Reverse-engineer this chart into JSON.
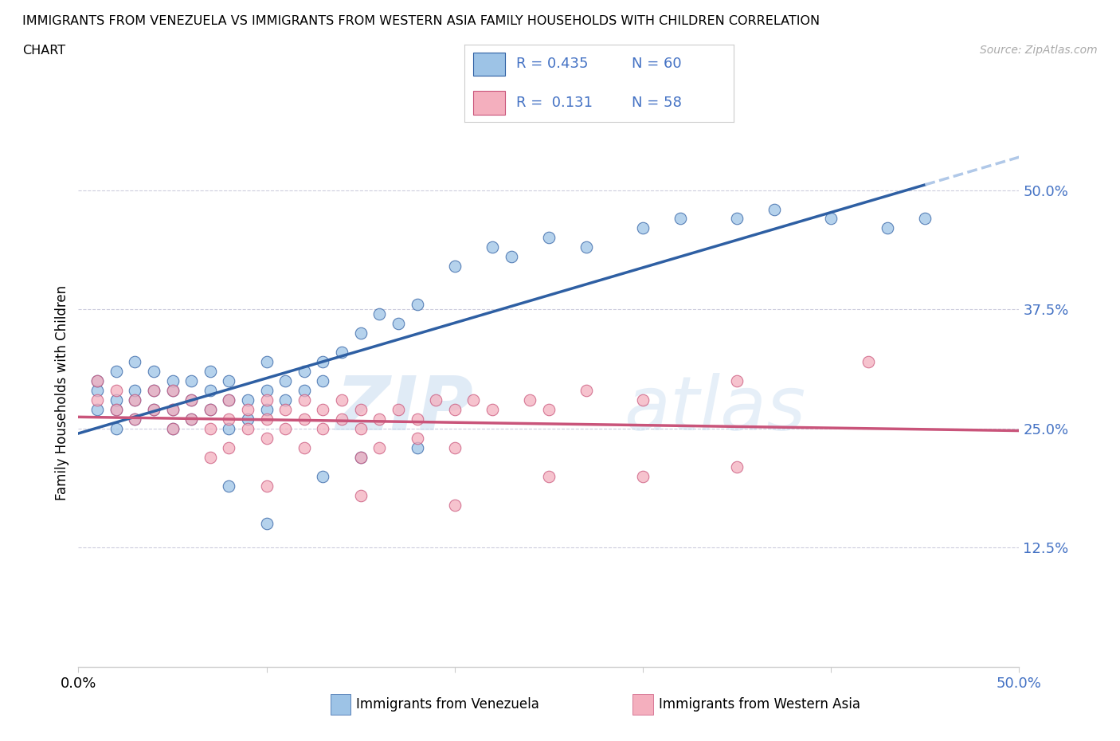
{
  "title_line1": "IMMIGRANTS FROM VENEZUELA VS IMMIGRANTS FROM WESTERN ASIA FAMILY HOUSEHOLDS WITH CHILDREN CORRELATION",
  "title_line2": "CHART",
  "source_text": "Source: ZipAtlas.com",
  "ylabel": "Family Households with Children",
  "xlabel_venezuela": "Immigrants from Venezuela",
  "xlabel_western_asia": "Immigrants from Western Asia",
  "watermark_zip": "ZIP",
  "watermark_atlas": "atlas",
  "R_venezuela": 0.435,
  "N_venezuela": 60,
  "R_western_asia": 0.131,
  "N_western_asia": 58,
  "color_venezuela": "#9DC3E6",
  "color_western_asia": "#F4AFBE",
  "trend_color_venezuela": "#2E5FA3",
  "trend_color_western_asia": "#C9547A",
  "trend_ext_color_venezuela": "#B0C8E8",
  "axis_label_color": "#4472C4",
  "xlim": [
    0.0,
    0.5
  ],
  "ylim": [
    0.0,
    0.575
  ],
  "yticks": [
    0.0,
    0.125,
    0.25,
    0.375,
    0.5
  ],
  "ytick_labels": [
    "",
    "12.5%",
    "25.0%",
    "37.5%",
    "50.0%"
  ],
  "xticks": [
    0.0,
    0.1,
    0.2,
    0.3,
    0.4,
    0.5
  ],
  "xtick_labels": [
    "0.0%",
    "",
    "",
    "",
    "",
    "50.0%"
  ],
  "ven_x": [
    0.01,
    0.01,
    0.01,
    0.02,
    0.02,
    0.02,
    0.02,
    0.03,
    0.03,
    0.03,
    0.03,
    0.04,
    0.04,
    0.04,
    0.05,
    0.05,
    0.05,
    0.05,
    0.06,
    0.06,
    0.06,
    0.07,
    0.07,
    0.07,
    0.08,
    0.08,
    0.08,
    0.09,
    0.09,
    0.1,
    0.1,
    0.1,
    0.11,
    0.11,
    0.12,
    0.12,
    0.13,
    0.13,
    0.14,
    0.15,
    0.16,
    0.17,
    0.18,
    0.2,
    0.22,
    0.23,
    0.25,
    0.27,
    0.3,
    0.32,
    0.35,
    0.37,
    0.4,
    0.43,
    0.45,
    0.13,
    0.08,
    0.15,
    0.18,
    0.1
  ],
  "ven_y": [
    0.27,
    0.29,
    0.3,
    0.25,
    0.27,
    0.28,
    0.31,
    0.26,
    0.28,
    0.29,
    0.32,
    0.27,
    0.29,
    0.31,
    0.25,
    0.27,
    0.29,
    0.3,
    0.26,
    0.28,
    0.3,
    0.27,
    0.29,
    0.31,
    0.25,
    0.28,
    0.3,
    0.26,
    0.28,
    0.27,
    0.29,
    0.32,
    0.28,
    0.3,
    0.29,
    0.31,
    0.3,
    0.32,
    0.33,
    0.35,
    0.37,
    0.36,
    0.38,
    0.42,
    0.44,
    0.43,
    0.45,
    0.44,
    0.46,
    0.47,
    0.47,
    0.48,
    0.47,
    0.46,
    0.47,
    0.2,
    0.19,
    0.22,
    0.23,
    0.15
  ],
  "was_x": [
    0.01,
    0.01,
    0.02,
    0.02,
    0.03,
    0.03,
    0.04,
    0.04,
    0.05,
    0.05,
    0.05,
    0.06,
    0.06,
    0.07,
    0.07,
    0.08,
    0.08,
    0.09,
    0.09,
    0.1,
    0.1,
    0.11,
    0.11,
    0.12,
    0.12,
    0.13,
    0.13,
    0.14,
    0.14,
    0.15,
    0.15,
    0.16,
    0.17,
    0.18,
    0.19,
    0.2,
    0.21,
    0.22,
    0.24,
    0.25,
    0.27,
    0.3,
    0.35,
    0.42,
    0.07,
    0.08,
    0.1,
    0.12,
    0.15,
    0.16,
    0.18,
    0.2,
    0.25,
    0.3,
    0.35,
    0.1,
    0.15,
    0.2
  ],
  "was_y": [
    0.28,
    0.3,
    0.27,
    0.29,
    0.26,
    0.28,
    0.27,
    0.29,
    0.25,
    0.27,
    0.29,
    0.26,
    0.28,
    0.25,
    0.27,
    0.26,
    0.28,
    0.25,
    0.27,
    0.26,
    0.28,
    0.25,
    0.27,
    0.26,
    0.28,
    0.25,
    0.27,
    0.26,
    0.28,
    0.25,
    0.27,
    0.26,
    0.27,
    0.26,
    0.28,
    0.27,
    0.28,
    0.27,
    0.28,
    0.27,
    0.29,
    0.28,
    0.3,
    0.32,
    0.22,
    0.23,
    0.24,
    0.23,
    0.22,
    0.23,
    0.24,
    0.23,
    0.2,
    0.2,
    0.21,
    0.19,
    0.18,
    0.17
  ]
}
